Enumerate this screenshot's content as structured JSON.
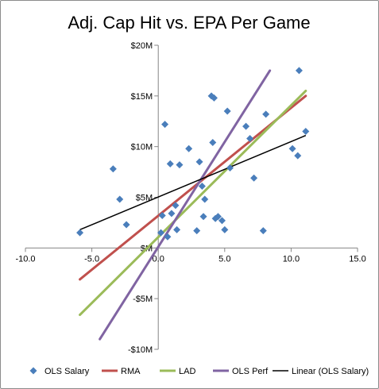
{
  "chart_data": {
    "type": "scatter",
    "title": "Adj. Cap Hit vs. EPA Per Game",
    "xlabel": "",
    "ylabel": "",
    "xlim": [
      -10,
      15
    ],
    "ylim": [
      -10,
      20
    ],
    "x_ticks": [
      -10,
      -5,
      0,
      5,
      10,
      15
    ],
    "x_tick_labels": [
      "-10.0",
      "-5.0",
      "0.0",
      "5.0",
      "10.0",
      "15.0"
    ],
    "y_ticks": [
      -10,
      -5,
      0,
      5,
      10,
      15,
      20
    ],
    "y_tick_labels": [
      "-$10M",
      "-$5M",
      "$M",
      "$5M",
      "$10M",
      "$15M",
      "$20M"
    ],
    "grid": "vertical and horizontal axis lines through zero only",
    "legend_position": "bottom",
    "series": [
      {
        "name": "OLS Salary",
        "kind": "scatter",
        "color": "#4a7ebb",
        "marker": "diamond",
        "points": [
          [
            -5.9,
            1.5
          ],
          [
            -3.4,
            7.8
          ],
          [
            -2.9,
            4.8
          ],
          [
            -2.4,
            2.3
          ],
          [
            0.2,
            1.5
          ],
          [
            0.3,
            3.2
          ],
          [
            0.5,
            12.2
          ],
          [
            0.7,
            1.1
          ],
          [
            0.9,
            8.3
          ],
          [
            1.0,
            3.4
          ],
          [
            1.3,
            4.2
          ],
          [
            1.4,
            1.8
          ],
          [
            1.6,
            8.2
          ],
          [
            2.3,
            9.8
          ],
          [
            2.9,
            1.7
          ],
          [
            3.1,
            8.5
          ],
          [
            3.3,
            6.1
          ],
          [
            3.4,
            3.1
          ],
          [
            3.5,
            4.8
          ],
          [
            4.0,
            15.0
          ],
          [
            4.1,
            10.4
          ],
          [
            4.2,
            14.8
          ],
          [
            4.3,
            2.9
          ],
          [
            4.5,
            3.1
          ],
          [
            4.8,
            2.7
          ],
          [
            5.0,
            1.8
          ],
          [
            5.2,
            13.5
          ],
          [
            5.4,
            7.9
          ],
          [
            6.6,
            12.0
          ],
          [
            6.9,
            10.8
          ],
          [
            7.2,
            6.9
          ],
          [
            7.9,
            1.7
          ],
          [
            8.1,
            13.2
          ],
          [
            10.1,
            9.8
          ],
          [
            10.5,
            9.1
          ],
          [
            10.6,
            17.5
          ],
          [
            11.1,
            11.5
          ]
        ]
      },
      {
        "name": "RMA",
        "kind": "line",
        "color": "#c0504d",
        "points": [
          [
            -5.9,
            -3.1
          ],
          [
            11.1,
            15.0
          ]
        ]
      },
      {
        "name": "LAD",
        "kind": "line",
        "color": "#9bbb59",
        "points": [
          [
            -5.9,
            -6.6
          ],
          [
            11.1,
            15.5
          ]
        ]
      },
      {
        "name": "OLS Perf",
        "kind": "line",
        "color": "#8064a2",
        "points": [
          [
            -4.4,
            -9.0
          ],
          [
            8.4,
            17.5
          ]
        ]
      },
      {
        "name": "Linear (OLS Salary)",
        "kind": "trendline",
        "color": "#000000",
        "points": [
          [
            -5.9,
            1.8
          ],
          [
            11.1,
            11.1
          ]
        ]
      }
    ]
  }
}
